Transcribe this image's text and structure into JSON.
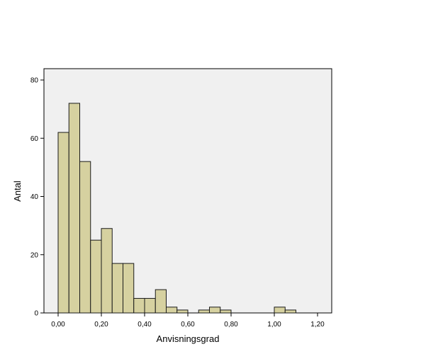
{
  "chart_data": {
    "type": "bar",
    "title": "",
    "xlabel": "Anvisningsgrad",
    "ylabel": "Antal",
    "xlim": [
      -0.05,
      1.29
    ],
    "ylim": [
      0,
      80
    ],
    "bin_width": 0.05,
    "x_ticks": [
      {
        "value": 0.0,
        "label": "0,00"
      },
      {
        "value": 0.2,
        "label": "0,20"
      },
      {
        "value": 0.4,
        "label": "0,40"
      },
      {
        "value": 0.6,
        "label": "0,60"
      },
      {
        "value": 0.8,
        "label": "0,80"
      },
      {
        "value": 1.0,
        "label": "1,00"
      },
      {
        "value": 1.2,
        "label": "1,20"
      }
    ],
    "y_ticks": [
      {
        "value": 0,
        "label": "0"
      },
      {
        "value": 20,
        "label": "20"
      },
      {
        "value": 40,
        "label": "40"
      },
      {
        "value": 60,
        "label": "60"
      },
      {
        "value": 80,
        "label": "80"
      }
    ],
    "bins": [
      {
        "x": 0.0,
        "count": 62
      },
      {
        "x": 0.05,
        "count": 72
      },
      {
        "x": 0.1,
        "count": 52
      },
      {
        "x": 0.15,
        "count": 25
      },
      {
        "x": 0.2,
        "count": 29
      },
      {
        "x": 0.25,
        "count": 17
      },
      {
        "x": 0.3,
        "count": 17
      },
      {
        "x": 0.35,
        "count": 5
      },
      {
        "x": 0.4,
        "count": 5
      },
      {
        "x": 0.45,
        "count": 8
      },
      {
        "x": 0.5,
        "count": 2
      },
      {
        "x": 0.55,
        "count": 1
      },
      {
        "x": 0.65,
        "count": 1
      },
      {
        "x": 0.7,
        "count": 2
      },
      {
        "x": 0.75,
        "count": 1
      },
      {
        "x": 1.0,
        "count": 2
      },
      {
        "x": 1.05,
        "count": 1
      }
    ],
    "grid": false,
    "legend": "none",
    "colors": {
      "bar_fill": "#d6d1a0",
      "bar_stroke": "#1a1a1a",
      "plot_background": "#f0f0f0",
      "axis": "#000000"
    }
  }
}
